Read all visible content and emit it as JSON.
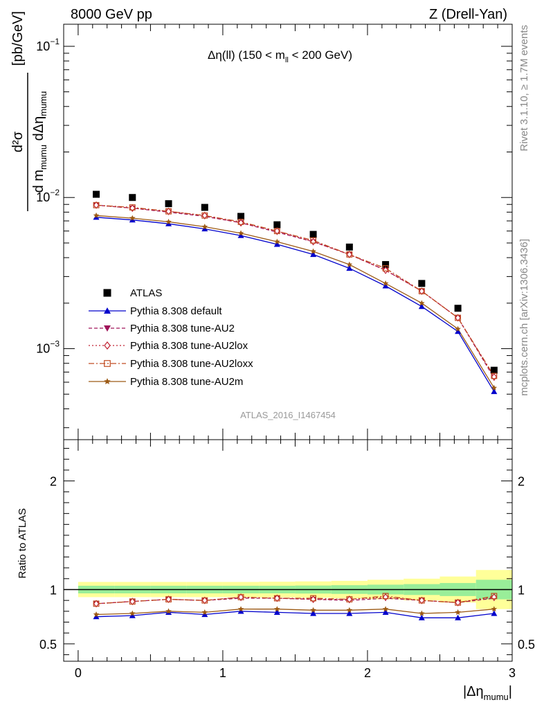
{
  "header": {
    "left": "8000 GeV pp",
    "right": "Z (Drell-Yan)"
  },
  "side_labels": {
    "rivet": "Rivet 3.1.10, ≥ 1.7M events",
    "mcplots": "mcplots.cern.ch [arXiv:1306.3436]"
  },
  "chart_data": [
    {
      "type": "line",
      "panel": "main",
      "title_main": "Δη(ll) (150 < m",
      "title_sub": "ll",
      "title_tail": " < 200 GeV)",
      "watermark": "ATLAS_2016_I1467454",
      "ylabel_unit": "[pb/GeV]",
      "ylabel_num": "d²σ",
      "ylabel_den_d1": "d m",
      "ylabel_den_sub1": "mumu",
      "ylabel_den_d2": " dΔη",
      "ylabel_den_sub2": "mumu",
      "yscale": "log",
      "ylim": [
        0.00025,
        0.14
      ],
      "xlim": [
        -0.1,
        3.0
      ],
      "yticks": [
        {
          "base": "10",
          "exp": "−1",
          "value": 0.1
        },
        {
          "base": "10",
          "exp": "−2",
          "value": 0.01
        },
        {
          "base": "10",
          "exp": "−3",
          "value": 0.001
        }
      ],
      "x": [
        0.125,
        0.375,
        0.625,
        0.875,
        1.125,
        1.375,
        1.625,
        1.875,
        2.125,
        2.375,
        2.625,
        2.875
      ],
      "legend_position": "center-left",
      "series": [
        {
          "name": "ATLAS",
          "color": "#000000",
          "marker": "square",
          "dash": "",
          "line": false,
          "values": [
            0.0105,
            0.01,
            0.0091,
            0.0086,
            0.0075,
            0.0066,
            0.0057,
            0.0047,
            0.0036,
            0.0027,
            0.00185,
            0.00072
          ]
        },
        {
          "name": "Pythia 8.308 default",
          "color": "#0000cc",
          "marker": "triangle-up",
          "dash": "",
          "line": true,
          "values": [
            0.0074,
            0.0071,
            0.0067,
            0.0062,
            0.0056,
            0.0049,
            0.0042,
            0.0034,
            0.0026,
            0.0019,
            0.0013,
            0.00052
          ]
        },
        {
          "name": "Pythia 8.308 tune-AU2",
          "color": "#a0145a",
          "marker": "triangle-down",
          "dash": "5,3",
          "line": true,
          "values": [
            0.0089,
            0.0085,
            0.008,
            0.0075,
            0.0068,
            0.0059,
            0.0051,
            0.0042,
            0.0033,
            0.0024,
            0.0016,
            0.00064
          ]
        },
        {
          "name": "Pythia 8.308 tune-AU2lox",
          "color": "#c02030",
          "marker": "diamond-open",
          "dash": "2,3",
          "line": true,
          "values": [
            0.0089,
            0.0085,
            0.0081,
            0.0076,
            0.0068,
            0.006,
            0.0051,
            0.0042,
            0.0033,
            0.0024,
            0.0016,
            0.00065
          ]
        },
        {
          "name": "Pythia 8.308 tune-AU2loxx",
          "color": "#c04a20",
          "marker": "square-open",
          "dash": "8,3,2,3",
          "line": true,
          "values": [
            0.0089,
            0.0086,
            0.0081,
            0.0076,
            0.0069,
            0.006,
            0.0052,
            0.0042,
            0.0034,
            0.0024,
            0.0016,
            0.00066
          ]
        },
        {
          "name": "Pythia 8.308 tune-AU2m",
          "color": "#9c5a14",
          "marker": "star",
          "dash": "",
          "line": true,
          "values": [
            0.0076,
            0.0073,
            0.0069,
            0.0064,
            0.0058,
            0.0051,
            0.0044,
            0.0036,
            0.0027,
            0.002,
            0.00135,
            0.00055
          ]
        }
      ]
    },
    {
      "type": "line",
      "panel": "ratio",
      "ylabel": "Ratio to ATLAS",
      "xlabel_main": "|Δη",
      "xlabel_sub": "mumu",
      "xlabel_tail": "|",
      "ylim": [
        0.34,
        2.38
      ],
      "xlim": [
        -0.1,
        3.0
      ],
      "yticks": [
        0.5,
        1,
        2
      ],
      "ytick_labels": [
        "0.5",
        "1",
        "2"
      ],
      "xticks": [
        0,
        1,
        2,
        3
      ],
      "xtick_labels": [
        "0",
        "1",
        "2",
        "3"
      ],
      "x": [
        0.125,
        0.375,
        0.625,
        0.875,
        1.125,
        1.375,
        1.625,
        1.875,
        2.125,
        2.375,
        2.625,
        2.875
      ],
      "band_green": [
        0.035,
        0.035,
        0.035,
        0.035,
        0.035,
        0.035,
        0.037,
        0.04,
        0.045,
        0.05,
        0.06,
        0.09
      ],
      "band_yellow": [
        0.07,
        0.07,
        0.07,
        0.07,
        0.07,
        0.072,
        0.075,
        0.08,
        0.09,
        0.1,
        0.12,
        0.18
      ],
      "series": [
        {
          "name": "Pythia 8.308 default",
          "values": [
            0.75,
            0.76,
            0.79,
            0.77,
            0.8,
            0.79,
            0.78,
            0.78,
            0.79,
            0.74,
            0.74,
            0.78
          ]
        },
        {
          "name": "Pythia 8.308 tune-AU2",
          "values": [
            0.87,
            0.89,
            0.91,
            0.9,
            0.92,
            0.92,
            0.91,
            0.9,
            0.92,
            0.9,
            0.88,
            0.92
          ]
        },
        {
          "name": "Pythia 8.308 tune-AU2lox",
          "values": [
            0.87,
            0.89,
            0.91,
            0.9,
            0.93,
            0.92,
            0.91,
            0.91,
            0.93,
            0.9,
            0.88,
            0.93
          ]
        },
        {
          "name": "Pythia 8.308 tune-AU2loxx",
          "values": [
            0.87,
            0.89,
            0.91,
            0.9,
            0.93,
            0.92,
            0.92,
            0.91,
            0.94,
            0.9,
            0.88,
            0.94
          ]
        },
        {
          "name": "Pythia 8.308 tune-AU2m",
          "values": [
            0.77,
            0.78,
            0.8,
            0.79,
            0.82,
            0.82,
            0.81,
            0.81,
            0.82,
            0.78,
            0.79,
            0.82
          ]
        }
      ]
    }
  ]
}
